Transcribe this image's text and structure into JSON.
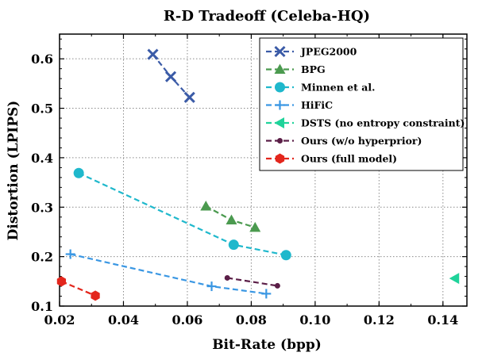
{
  "chart_data": {
    "type": "line",
    "title": "R-D Tradeoff (Celeba-HQ)",
    "xlabel": "Bit-Rate (bpp)",
    "ylabel": "Distortion (LPIPS)",
    "xlim": [
      0.02,
      0.1475
    ],
    "ylim": [
      0.1,
      0.65
    ],
    "x_ticks": [
      0.02,
      0.04,
      0.06,
      0.08,
      0.1,
      0.12,
      0.14
    ],
    "x_tick_labels": [
      "0.02",
      "0.04",
      "0.06",
      "0.08",
      "0.10",
      "0.12",
      "0.14"
    ],
    "y_ticks": [
      0.1,
      0.2,
      0.3,
      0.4,
      0.5,
      0.6
    ],
    "y_tick_labels": [
      "0.1",
      "0.2",
      "0.3",
      "0.4",
      "0.5",
      "0.6"
    ],
    "grid": true,
    "legend_position": "top-right",
    "series": [
      {
        "name": "JPEG2000",
        "color": "#3b5ba7",
        "marker": "x",
        "x": [
          0.0492,
          0.0548,
          0.0607
        ],
        "y": [
          0.609,
          0.564,
          0.522
        ]
      },
      {
        "name": "BPG",
        "color": "#4b9a4f",
        "marker": "triangle-up",
        "x": [
          0.0658,
          0.0738,
          0.0812
        ],
        "y": [
          0.302,
          0.274,
          0.259
        ]
      },
      {
        "name": "Minnen et al.",
        "color": "#1fb8cc",
        "marker": "circle",
        "x": [
          0.026,
          0.0745,
          0.0909
        ],
        "y": [
          0.369,
          0.224,
          0.203
        ]
      },
      {
        "name": "HiFiC",
        "color": "#3a97e3",
        "marker": "plus",
        "x": [
          0.0234,
          0.0676,
          0.0847
        ],
        "y": [
          0.205,
          0.14,
          0.125
        ]
      },
      {
        "name": "DSTS (no entropy constraint)",
        "color": "#1fd39a",
        "marker": "triangle-left",
        "x": [
          0.1437
        ],
        "y": [
          0.156
        ]
      },
      {
        "name": "Ours (w/o hyperprior)",
        "color": "#5b1e47",
        "marker": "small-circle",
        "x": [
          0.0725,
          0.0882
        ],
        "y": [
          0.157,
          0.141
        ]
      },
      {
        "name": "Ours (full model)",
        "color": "#e3261c",
        "marker": "hexagon",
        "x": [
          0.0206,
          0.0312
        ],
        "y": [
          0.15,
          0.121
        ]
      }
    ]
  }
}
